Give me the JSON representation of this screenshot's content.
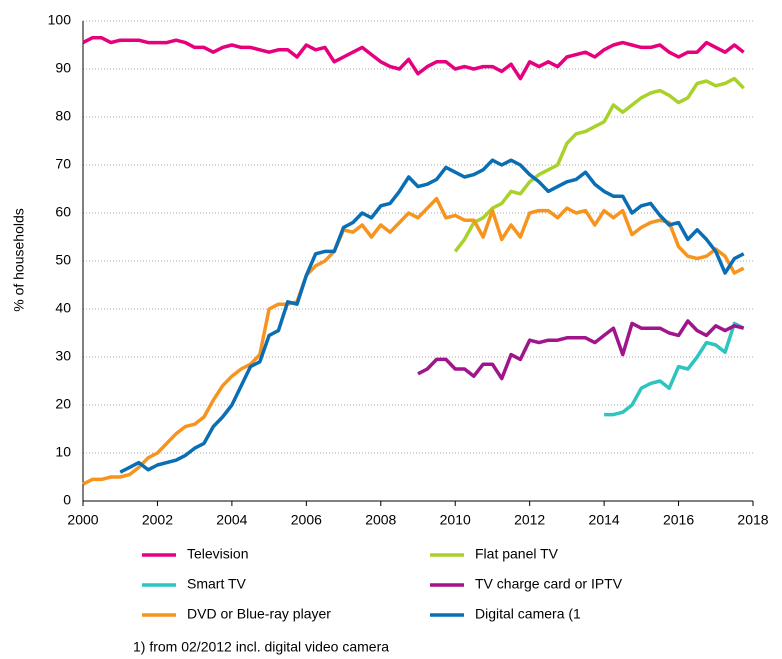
{
  "chart_data": {
    "type": "line",
    "y_label": "% of households",
    "footnote": "1) from 02/2012 incl. digital video camera",
    "x": [
      2000,
      2000.25,
      2000.5,
      2000.75,
      2001,
      2001.25,
      2001.5,
      2001.75,
      2002,
      2002.25,
      2002.5,
      2002.75,
      2003,
      2003.25,
      2003.5,
      2003.75,
      2004,
      2004.25,
      2004.5,
      2004.75,
      2005,
      2005.25,
      2005.5,
      2005.75,
      2006,
      2006.25,
      2006.5,
      2006.75,
      2007,
      2007.25,
      2007.5,
      2007.75,
      2008,
      2008.25,
      2008.5,
      2008.75,
      2009,
      2009.25,
      2009.5,
      2009.75,
      2010,
      2010.25,
      2010.5,
      2010.75,
      2011,
      2011.25,
      2011.5,
      2011.75,
      2012,
      2012.25,
      2012.5,
      2012.75,
      2013,
      2013.25,
      2013.5,
      2013.75,
      2014,
      2014.25,
      2014.5,
      2014.75,
      2015,
      2015.25,
      2015.5,
      2015.75,
      2016,
      2016.25,
      2016.5,
      2016.75,
      2017,
      2017.25,
      2017.5,
      2017.75
    ],
    "series": [
      {
        "name": "Television",
        "color": "#e6007e",
        "values": [
          95.5,
          96.5,
          96.5,
          95.5,
          96,
          96,
          96,
          95.5,
          95.5,
          95.5,
          96,
          95.5,
          94.5,
          94.5,
          93.5,
          94.5,
          95,
          94.5,
          94.5,
          94,
          93.5,
          94,
          94,
          92.5,
          95,
          94,
          94.5,
          91.5,
          92.5,
          93.5,
          94.5,
          93,
          91.5,
          90.5,
          90,
          92,
          89,
          90.5,
          91.5,
          91.5,
          90,
          90.5,
          90,
          90.5,
          90.5,
          89.5,
          91,
          88,
          91.5,
          90.5,
          91.5,
          90.5,
          92.5,
          93,
          93.5,
          92.5,
          94,
          95,
          95.5,
          95,
          94.5,
          94.5,
          95,
          93.5,
          92.5,
          93.5,
          93.5,
          95.5,
          94.5,
          93.5,
          95,
          93.5
        ]
      },
      {
        "name": "Flat panel TV",
        "color": "#a8d22a",
        "values": [
          null,
          null,
          null,
          null,
          null,
          null,
          null,
          null,
          null,
          null,
          null,
          null,
          null,
          null,
          null,
          null,
          null,
          null,
          null,
          null,
          null,
          null,
          null,
          null,
          null,
          null,
          null,
          null,
          null,
          null,
          null,
          null,
          null,
          null,
          null,
          null,
          null,
          null,
          null,
          null,
          52,
          54.5,
          58,
          59,
          61,
          62,
          64.5,
          64,
          66.5,
          68,
          69,
          70,
          74.5,
          76.5,
          77,
          78,
          79,
          82.5,
          81,
          82.5,
          84,
          85,
          85.5,
          84.5,
          83,
          84,
          87,
          87.5,
          86.5,
          87,
          88,
          86
        ]
      },
      {
        "name": "Smart TV",
        "color": "#2ec4c0",
        "values": [
          null,
          null,
          null,
          null,
          null,
          null,
          null,
          null,
          null,
          null,
          null,
          null,
          null,
          null,
          null,
          null,
          null,
          null,
          null,
          null,
          null,
          null,
          null,
          null,
          null,
          null,
          null,
          null,
          null,
          null,
          null,
          null,
          null,
          null,
          null,
          null,
          null,
          null,
          null,
          null,
          null,
          null,
          null,
          null,
          null,
          null,
          null,
          null,
          null,
          null,
          null,
          null,
          null,
          null,
          null,
          null,
          18,
          18,
          18.5,
          20,
          23.5,
          24.5,
          25,
          23.5,
          28,
          27.5,
          30,
          33,
          32.5,
          31,
          37,
          36
        ]
      },
      {
        "name": "TV charge card or IPTV",
        "color": "#a0148c",
        "values": [
          null,
          null,
          null,
          null,
          null,
          null,
          null,
          null,
          null,
          null,
          null,
          null,
          null,
          null,
          null,
          null,
          null,
          null,
          null,
          null,
          null,
          null,
          null,
          null,
          null,
          null,
          null,
          null,
          null,
          null,
          null,
          null,
          null,
          null,
          null,
          null,
          26.5,
          27.5,
          29.5,
          29.5,
          27.5,
          27.5,
          26,
          28.5,
          28.5,
          25.5,
          30.5,
          29.5,
          33.5,
          33,
          33.5,
          33.5,
          34,
          34,
          34,
          33,
          34.5,
          36,
          30.5,
          37,
          36,
          36,
          36,
          35,
          34.5,
          37.5,
          35.5,
          34.5,
          36.5,
          35.5,
          36.5,
          36
        ]
      },
      {
        "name": "DVD or Blue-ray player",
        "color": "#f7941d",
        "values": [
          3.5,
          4.5,
          4.5,
          5,
          5,
          5.5,
          7,
          9,
          10,
          12,
          14,
          15.5,
          16,
          17.5,
          21,
          24,
          26,
          27.5,
          28.5,
          30.5,
          40,
          41,
          41,
          41.5,
          47,
          49,
          50,
          52,
          56.5,
          56,
          57.5,
          55,
          57.5,
          56,
          58,
          60,
          59,
          61,
          63,
          59,
          59.5,
          58.5,
          58.5,
          55,
          60.5,
          54.5,
          57.5,
          55,
          60,
          60.5,
          60.5,
          59,
          61,
          60,
          60.5,
          57.5,
          60.5,
          59,
          60.5,
          55.5,
          57,
          58,
          58.5,
          58,
          53,
          51,
          50.5,
          51,
          52.5,
          51,
          47.5,
          48.5
        ]
      },
      {
        "name": "Digital camera (1",
        "color": "#0a6eb4",
        "values": [
          null,
          null,
          null,
          null,
          6,
          7,
          8,
          6.5,
          7.5,
          8,
          8.5,
          9.5,
          11,
          12,
          15.5,
          17.5,
          20,
          24,
          28,
          29,
          34.5,
          35.5,
          41.5,
          41,
          47,
          51.5,
          52,
          52,
          57,
          58,
          60,
          59,
          61.5,
          62,
          64.5,
          67.5,
          65.5,
          66,
          67,
          69.5,
          68.5,
          67.5,
          68,
          69,
          71,
          70,
          71,
          70,
          68,
          66.5,
          64.5,
          65.5,
          66.5,
          67,
          68.5,
          66,
          64.5,
          63.5,
          63.5,
          60,
          61.5,
          62,
          59.5,
          57.5,
          58,
          54.5,
          56.5,
          54.5,
          52,
          47.5,
          50.5,
          51.5
        ]
      }
    ],
    "xlim": [
      2000,
      2018
    ],
    "xticks": [
      2000,
      2002,
      2004,
      2006,
      2008,
      2010,
      2012,
      2014,
      2016,
      2018
    ],
    "ylim": [
      0,
      100
    ],
    "yticks": [
      0,
      10,
      20,
      30,
      40,
      50,
      60,
      70,
      80,
      90,
      100
    ],
    "grid": true
  }
}
